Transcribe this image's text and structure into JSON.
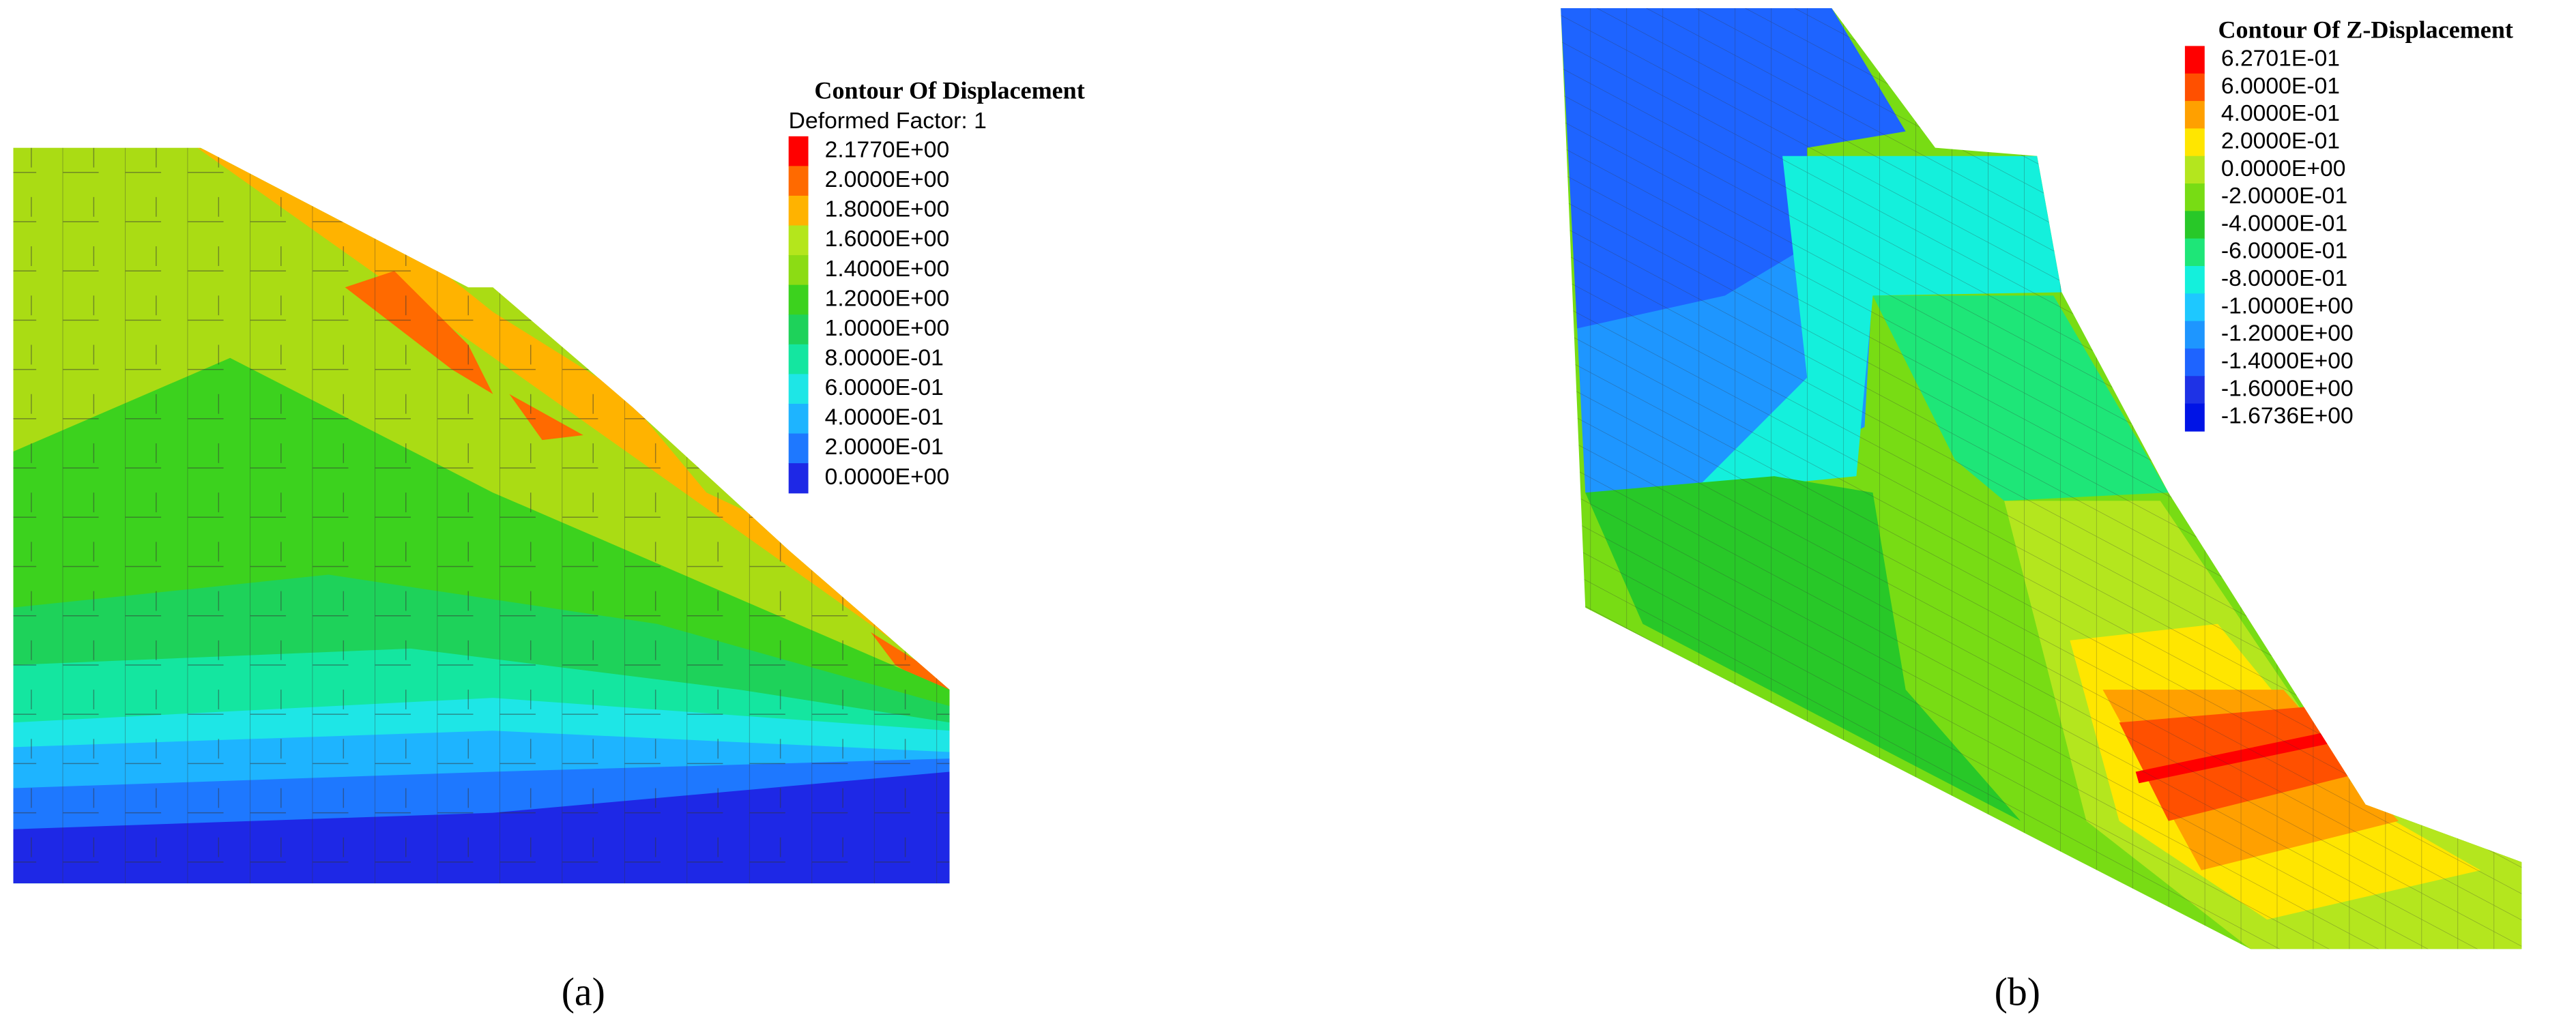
{
  "panels": [
    {
      "legend_title": "Contour Of Displacement",
      "subtitle": "Deformed Factor: 1",
      "label": "(a)",
      "legend": [
        {
          "label": "2.1770E+00",
          "color": "#ff0000"
        },
        {
          "label": "2.0000E+00",
          "color": "#ff6a00"
        },
        {
          "label": "1.8000E+00",
          "color": "#ffb300"
        },
        {
          "label": "1.6000E+00",
          "color": "#b4e61c"
        },
        {
          "label": "1.4000E+00",
          "color": "#8cdc14"
        },
        {
          "label": "1.2000E+00",
          "color": "#3cd21e"
        },
        {
          "label": "1.0000E+00",
          "color": "#1ed25a"
        },
        {
          "label": "8.0000E-01",
          "color": "#14e6a0"
        },
        {
          "label": "6.0000E-01",
          "color": "#1ee6e6"
        },
        {
          "label": "4.0000E-01",
          "color": "#1eb4ff"
        },
        {
          "label": "2.0000E-01",
          "color": "#1e78ff"
        },
        {
          "label": "0.0000E+00",
          "color": "#1e28e6"
        }
      ]
    },
    {
      "legend_title": "Contour Of Z-Displacement",
      "label": "(b)",
      "legend": [
        {
          "label": "6.2701E-01",
          "color": "#ff0000"
        },
        {
          "label": "6.0000E-01",
          "color": "#ff5000"
        },
        {
          "label": "4.0000E-01",
          "color": "#ffa000"
        },
        {
          "label": "2.0000E-01",
          "color": "#ffe600"
        },
        {
          "label": "0.0000E+00",
          "color": "#b4e61e"
        },
        {
          "label": "-2.0000E-01",
          "color": "#78dc14"
        },
        {
          "label": "-4.0000E-01",
          "color": "#28c828"
        },
        {
          "label": "-6.0000E-01",
          "color": "#1ee678"
        },
        {
          "label": "-8.0000E-01",
          "color": "#14f0dc"
        },
        {
          "label": "-1.0000E+00",
          "color": "#1ec8ff"
        },
        {
          "label": "-1.2000E+00",
          "color": "#1e96ff"
        },
        {
          "label": "-1.4000E+00",
          "color": "#1e64ff"
        },
        {
          "label": "-1.6000E+00",
          "color": "#1e32e6"
        },
        {
          "label": "-1.6736E+00",
          "color": "#0014e6"
        }
      ]
    }
  ]
}
